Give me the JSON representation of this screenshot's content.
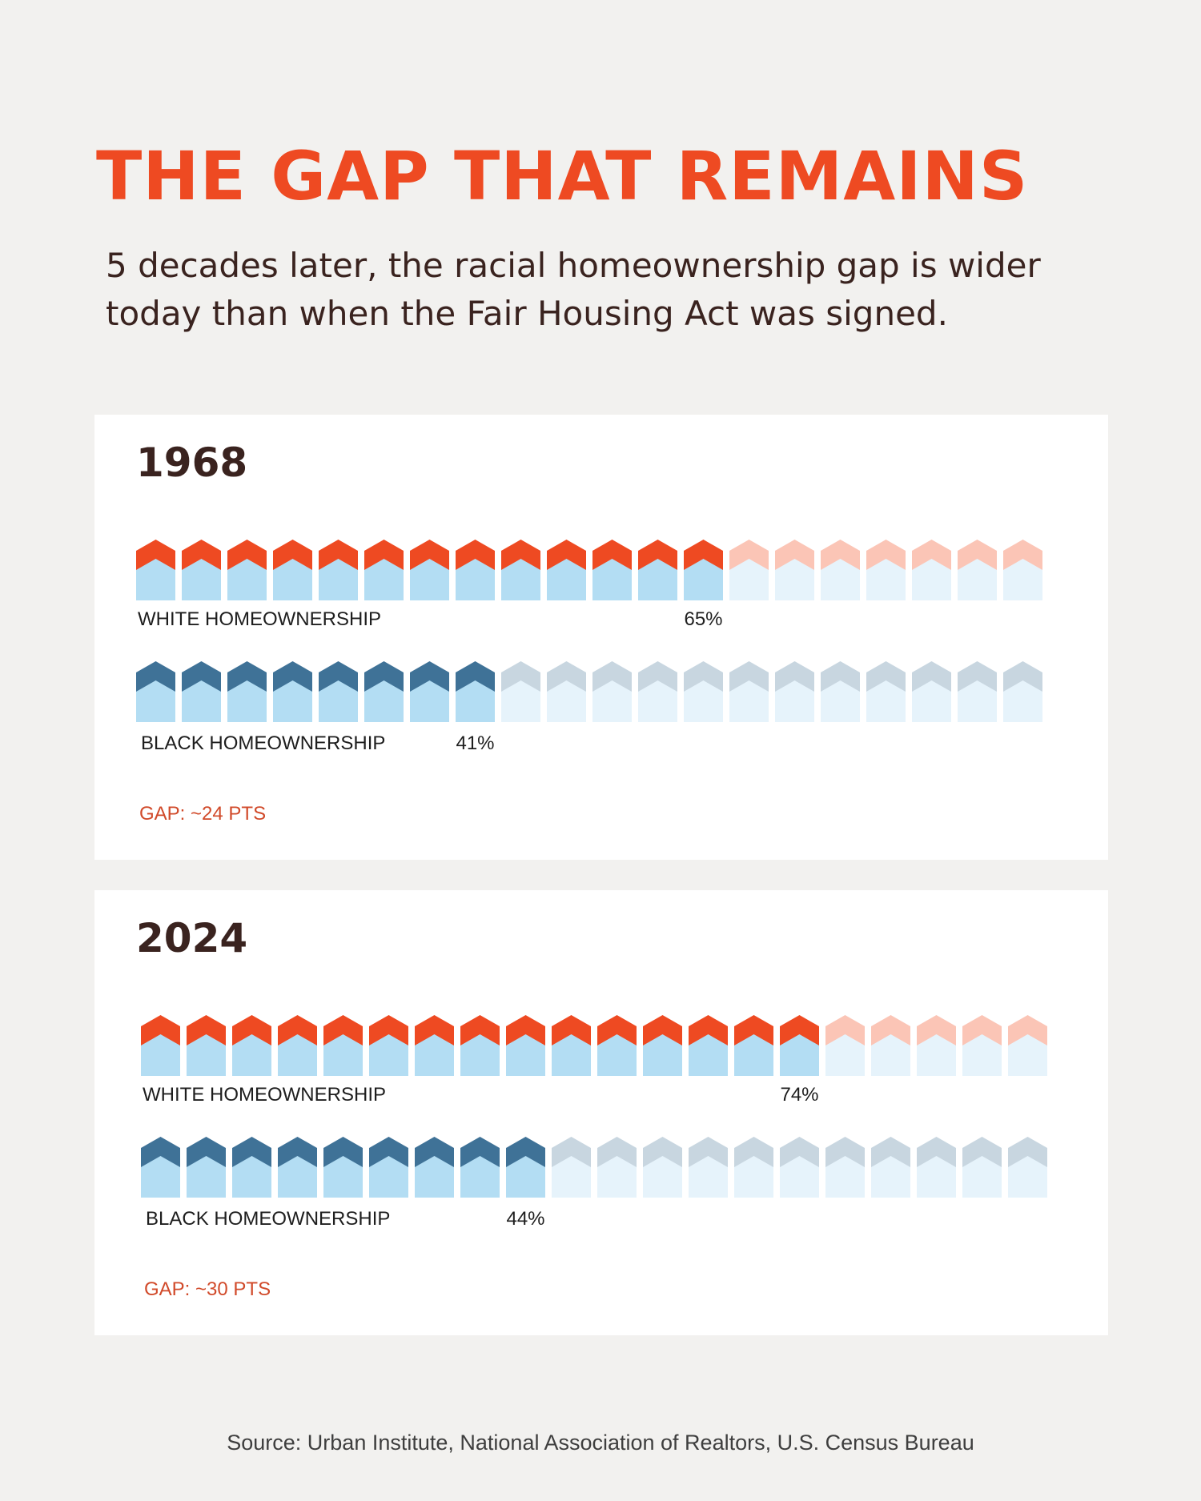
{
  "title": "THE GAP THAT REMAINS",
  "subtitle": "5 decades later, the racial homeownership gap is wider today than when the Fair Housing Act was signed.",
  "source": "Source: Urban Institute, National Association of Realtors, U.S. Census Bureau",
  "colors": {
    "background": "#f2f1ef",
    "panel": "#ffffff",
    "white_roof_filled": "#ee4a22",
    "white_roof_empty": "#fbc5b6",
    "black_roof_filled": "#3f7297",
    "black_roof_empty": "#c8d6e0",
    "body_filled": "#b3ddf3",
    "body_empty": "#e6f3fb",
    "gap_text": "#d14a2a"
  },
  "chart_data": [
    {
      "type": "bar",
      "title": "1968",
      "units_total": 20,
      "series": [
        {
          "name": "WHITE HOMEOWNERSHIP",
          "label": "65%",
          "value": 65,
          "filled_units": 13
        },
        {
          "name": "BLACK HOMEOWNERSHIP",
          "label": "41%",
          "value": 41,
          "filled_units": 8
        }
      ],
      "gap": "GAP: ~24 PTS"
    },
    {
      "type": "bar",
      "title": "2024",
      "units_total": 20,
      "series": [
        {
          "name": "WHITE HOMEOWNERSHIP",
          "label": "74%",
          "value": 74,
          "filled_units": 15
        },
        {
          "name": "BLACK HOMEOWNERSHIP",
          "label": "44%",
          "value": 44,
          "filled_units": 9
        }
      ],
      "gap": "GAP: ~30 PTS"
    }
  ]
}
